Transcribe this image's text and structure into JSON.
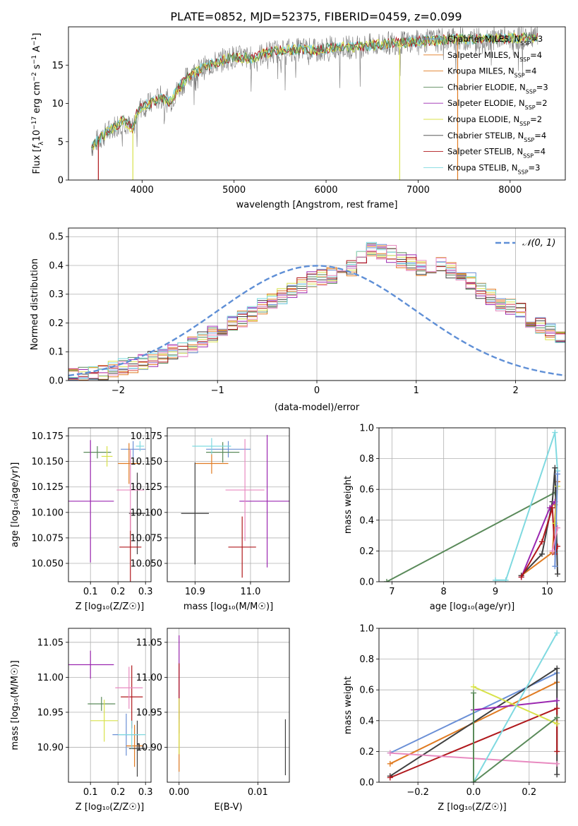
{
  "title": "PLATE=0852, MJD=52375, FIBERID=0459, z=0.099",
  "colors": {
    "Chabrier MILES": "#6a8fd6",
    "Salpeter MILES": "#e07b22",
    "Kroupa MILES": "#e07b22",
    "Chabrier ELODIE": "#5a8a5a",
    "Salpeter ELODIE": "#9b27b0",
    "Kroupa ELODIE": "#d8e24a",
    "Chabrier STELIB": "#404040",
    "Salpeter STELIB": "#b0181c",
    "Kroupa STELIB": "#7fd9e0",
    "pink": "#e88ac0"
  },
  "chart_data": [
    {
      "id": "spectrum",
      "type": "line",
      "xlabel": "wavelength [Angstrom, rest frame]",
      "ylabel": "Flux [f_λ10^-17 erg cm^-2 s^-1 A^-1]",
      "xlim": [
        3200,
        8600
      ],
      "ylim": [
        0,
        20
      ],
      "xticks": [
        4000,
        5000,
        6000,
        7000,
        8000
      ],
      "yticks": [
        0,
        5,
        10,
        15
      ],
      "grid": false,
      "legend_position": "right",
      "legend": [
        {
          "label": "Chabrier MILES, N_SSP=3",
          "name": "Chabrier MILES",
          "nssp": "3"
        },
        {
          "label": "Salpeter MILES, N_SSP=4",
          "name": "Salpeter MILES",
          "nssp": "4"
        },
        {
          "label": "Kroupa MILES, N_SSP=4",
          "name": "Kroupa MILES",
          "nssp": "4"
        },
        {
          "label": "Chabrier ELODIE, N_SSP=3",
          "name": "Chabrier ELODIE",
          "nssp": "3"
        },
        {
          "label": "Salpeter ELODIE, N_SSP=2",
          "name": "Salpeter ELODIE",
          "nssp": "2"
        },
        {
          "label": "Kroupa ELODIE, N_SSP=2",
          "name": "Kroupa ELODIE",
          "nssp": "2"
        },
        {
          "label": "Chabrier STELIB, N_SSP=4",
          "name": "Chabrier STELIB",
          "nssp": "4"
        },
        {
          "label": "Salpeter STELIB, N_SSP=4",
          "name": "Salpeter STELIB",
          "nssp": "4"
        },
        {
          "label": "Kroupa STELIB, N_SSP=3",
          "name": "Kroupa STELIB",
          "nssp": "3"
        }
      ],
      "continuum": [
        [
          3450,
          4.3
        ],
        [
          3500,
          5.0
        ],
        [
          3600,
          6.0
        ],
        [
          3700,
          7.0
        ],
        [
          3800,
          7.8
        ],
        [
          3900,
          6.5
        ],
        [
          3950,
          9.0
        ],
        [
          4000,
          9.6
        ],
        [
          4100,
          10.0
        ],
        [
          4200,
          10.8
        ],
        [
          4300,
          10.2
        ],
        [
          4400,
          12.0
        ],
        [
          4500,
          13.5
        ],
        [
          4600,
          14.2
        ],
        [
          4700,
          14.8
        ],
        [
          4800,
          15.3
        ],
        [
          4900,
          15.8
        ],
        [
          5000,
          16.1
        ],
        [
          5100,
          16.0
        ],
        [
          5200,
          15.9
        ],
        [
          5300,
          16.4
        ],
        [
          5400,
          16.7
        ],
        [
          5500,
          16.9
        ],
        [
          5600,
          17.0
        ],
        [
          5700,
          17.0
        ],
        [
          5800,
          17.1
        ],
        [
          5900,
          16.8
        ],
        [
          6000,
          17.2
        ],
        [
          6100,
          17.4
        ],
        [
          6200,
          17.4
        ],
        [
          6300,
          17.3
        ],
        [
          6400,
          17.5
        ],
        [
          6500,
          17.6
        ],
        [
          6600,
          17.7
        ],
        [
          6700,
          17.9
        ],
        [
          6800,
          17.9
        ],
        [
          6900,
          18.0
        ],
        [
          7000,
          18.1
        ],
        [
          7200,
          18.2
        ],
        [
          7400,
          18.4
        ],
        [
          7600,
          18.4
        ],
        [
          7800,
          18.5
        ],
        [
          8000,
          18.5
        ],
        [
          8200,
          18.6
        ],
        [
          8300,
          18.6
        ]
      ],
      "spikes": [
        {
          "x": 3900,
          "series": "Kroupa ELODIE",
          "y": 0
        },
        {
          "x": 3525,
          "series": "Salpeter STELIB",
          "y": 0
        },
        {
          "x": 6800,
          "series": "Kroupa ELODIE",
          "y": 0
        },
        {
          "x": 7430,
          "series": "Salpeter MILES",
          "y": 0
        }
      ]
    },
    {
      "id": "residual-histogram",
      "type": "histogram",
      "xlabel": "(data-model)/error",
      "ylabel": "Normed distribution",
      "xlim": [
        -2.5,
        2.5
      ],
      "ylim": [
        0,
        0.53
      ],
      "xticks": [
        -2,
        -1,
        0,
        1,
        2
      ],
      "yticks": [
        0.0,
        0.1,
        0.2,
        0.3,
        0.4,
        0.5
      ],
      "grid": true,
      "legend_position": "top-right",
      "legend": [
        {
          "label": "𝒩(0, 1)"
        }
      ],
      "bin_edges_start": -2.5,
      "bin_width": 0.1,
      "base_values": [
        0.02,
        0.022,
        0.028,
        0.032,
        0.04,
        0.048,
        0.055,
        0.065,
        0.075,
        0.088,
        0.1,
        0.112,
        0.125,
        0.14,
        0.16,
        0.175,
        0.195,
        0.215,
        0.235,
        0.255,
        0.275,
        0.295,
        0.315,
        0.335,
        0.35,
        0.36,
        0.365,
        0.375,
        0.39,
        0.42,
        0.46,
        0.45,
        0.44,
        0.42,
        0.41,
        0.39,
        0.39,
        0.4,
        0.38,
        0.36,
        0.345,
        0.31,
        0.29,
        0.27,
        0.255,
        0.24,
        0.21,
        0.19,
        0.17,
        0.15,
        0.13,
        0.115,
        0.1,
        0.09,
        0.075,
        0.065,
        0.055,
        0.045,
        0.04,
        0.035,
        0.03,
        0.028,
        0.03,
        0.035,
        0.025
      ]
    },
    {
      "id": "age-vs-Z",
      "type": "errorbar",
      "xlabel": "Z [log10(Z/Z☉)]",
      "ylabel": "age [log10(age/yr)]",
      "xlim": [
        0.02,
        0.32
      ],
      "ylim": [
        10.032,
        10.183
      ],
      "xticks": [
        0.1,
        0.2,
        0.3
      ],
      "yticks": [
        10.05,
        10.075,
        10.1,
        10.125,
        10.15,
        10.175
      ],
      "grid": true,
      "points": [
        {
          "series": "Chabrier MILES",
          "x": 0.255,
          "y": 10.162,
          "xerr": 0.045,
          "yerr": 0.008
        },
        {
          "series": "Salpeter MILES",
          "x": 0.24,
          "y": 10.148,
          "xerr": 0.04,
          "yerr": 0.02
        },
        {
          "series": "Chabrier ELODIE",
          "x": 0.125,
          "y": 10.159,
          "xerr": 0.05,
          "yerr": 0.006
        },
        {
          "series": "Salpeter ELODIE",
          "x": 0.1,
          "y": 10.111,
          "xerr": 0.085,
          "yerr": 0.06
        },
        {
          "series": "Kroupa ELODIE",
          "x": 0.16,
          "y": 10.155,
          "xerr": 0.02,
          "yerr": 0.01
        },
        {
          "series": "Chabrier STELIB",
          "x": 0.27,
          "y": 10.099,
          "xerr": 0.03,
          "yerr": 0.04
        },
        {
          "series": "Salpeter STELIB",
          "x": 0.245,
          "y": 10.066,
          "xerr": 0.04,
          "yerr": 0.035
        },
        {
          "series": "Kroupa STELIB",
          "x": 0.28,
          "y": 10.165,
          "xerr": 0.015,
          "yerr": 0.005
        },
        {
          "series": "pink",
          "x": 0.245,
          "y": 10.122,
          "xerr": 0.05,
          "yerr": 0.04
        }
      ]
    },
    {
      "id": "age-vs-mass",
      "type": "errorbar",
      "xlabel": "mass [log10(M/M☉)]",
      "ylabel": "",
      "xlim": [
        10.85,
        11.07
      ],
      "ylim": [
        10.032,
        10.183
      ],
      "xticks": [
        10.9,
        11.0
      ],
      "yticks": [
        10.05,
        10.075,
        10.1,
        10.125,
        10.15,
        10.175
      ],
      "grid": true,
      "points": [
        {
          "series": "Chabrier MILES",
          "x": 10.96,
          "y": 10.162,
          "xerr": 0.04,
          "yerr": 0.008
        },
        {
          "series": "Salpeter MILES",
          "x": 10.93,
          "y": 10.148,
          "xerr": 0.03,
          "yerr": 0.01
        },
        {
          "series": "Chabrier ELODIE",
          "x": 10.95,
          "y": 10.159,
          "xerr": 0.03,
          "yerr": 0.01
        },
        {
          "series": "Salpeter ELODIE",
          "x": 11.03,
          "y": 10.111,
          "xerr": 0.05,
          "yerr": 0.065
        },
        {
          "series": "Chabrier STELIB",
          "x": 10.9,
          "y": 10.099,
          "xerr": 0.025,
          "yerr": 0.05
        },
        {
          "series": "Salpeter STELIB",
          "x": 10.985,
          "y": 10.066,
          "xerr": 0.025,
          "yerr": 0.03
        },
        {
          "series": "Kroupa STELIB",
          "x": 10.93,
          "y": 10.165,
          "xerr": 0.035,
          "yerr": 0.008
        },
        {
          "series": "pink",
          "x": 10.99,
          "y": 10.122,
          "xerr": 0.035,
          "yerr": 0.05
        }
      ]
    },
    {
      "id": "mass-weight-vs-age",
      "type": "line",
      "xlabel": "age [log10(age/yr)]",
      "ylabel": "mass weight",
      "xlim": [
        6.75,
        10.35
      ],
      "ylim": [
        0,
        1.0
      ],
      "xticks": [
        7,
        8,
        9,
        10
      ],
      "yticks": [
        0.0,
        0.2,
        0.4,
        0.6,
        0.8,
        1.0
      ],
      "grid": true,
      "series": [
        {
          "name": "Chabrier ELODIE",
          "x": [
            6.9,
            10.15
          ],
          "y": [
            0.0,
            0.58
          ]
        },
        {
          "name": "Kroupa STELIB",
          "x": [
            9.0,
            9.2,
            10.15,
            10.2
          ],
          "y": [
            0.01,
            0.01,
            0.97,
            0.72
          ]
        },
        {
          "name": "Salpeter MILES",
          "x": [
            9.5,
            10.1,
            10.2,
            10.15
          ],
          "y": [
            0.04,
            0.19,
            0.65,
            0.5
          ]
        },
        {
          "name": "Chabrier STELIB",
          "x": [
            9.5,
            9.9,
            10.1,
            10.15,
            10.2
          ],
          "y": [
            0.04,
            0.18,
            0.52,
            0.74,
            0.05
          ]
        },
        {
          "name": "Salpeter ELODIE",
          "x": [
            9.5,
            10.05,
            10.15
          ],
          "y": [
            0.03,
            0.48,
            0.52
          ]
        },
        {
          "name": "Salpeter STELIB",
          "x": [
            9.5,
            9.9,
            10.1,
            10.15,
            10.2
          ],
          "y": [
            0.03,
            0.26,
            0.48,
            0.18,
            0.23
          ]
        },
        {
          "name": "Kroupa ELODIE",
          "x": [
            10.15,
            10.2
          ],
          "y": [
            0.38,
            0.62
          ]
        },
        {
          "name": "Chabrier MILES",
          "x": [
            10.15,
            10.2
          ],
          "y": [
            0.1,
            0.7
          ]
        },
        {
          "name": "pink",
          "x": [
            10.1,
            10.2
          ],
          "y": [
            0.2,
            0.35
          ]
        }
      ]
    },
    {
      "id": "mass-vs-Z",
      "type": "errorbar",
      "xlabel": "Z [log10(Z/Z☉)]",
      "ylabel": "mass [log10(M/M☉)]",
      "xlim": [
        0.02,
        0.32
      ],
      "ylim": [
        10.85,
        11.07
      ],
      "xticks": [
        0.1,
        0.2,
        0.3
      ],
      "yticks": [
        10.9,
        10.95,
        11.0,
        11.05
      ],
      "grid": true,
      "points": [
        {
          "series": "Chabrier MILES",
          "x": 0.23,
          "y": 10.918,
          "xerr": 0.05,
          "yerr": 0.03
        },
        {
          "series": "Salpeter MILES",
          "x": 0.26,
          "y": 10.902,
          "xerr": 0.03,
          "yerr": 0.03
        },
        {
          "series": "Chabrier ELODIE",
          "x": 0.14,
          "y": 10.962,
          "xerr": 0.05,
          "yerr": 0.01
        },
        {
          "series": "Salpeter ELODIE",
          "x": 0.1,
          "y": 11.018,
          "xerr": 0.085,
          "yerr": 0.02
        },
        {
          "series": "Kroupa ELODIE",
          "x": 0.15,
          "y": 10.938,
          "xerr": 0.05,
          "yerr": 0.03
        },
        {
          "series": "Chabrier STELIB",
          "x": 0.27,
          "y": 10.898,
          "xerr": 0.03,
          "yerr": 0.04
        },
        {
          "series": "Salpeter STELIB",
          "x": 0.25,
          "y": 10.972,
          "xerr": 0.04,
          "yerr": 0.045
        },
        {
          "series": "Kroupa STELIB",
          "x": 0.25,
          "y": 10.918,
          "xerr": 0.05,
          "yerr": 0.02
        },
        {
          "series": "pink",
          "x": 0.24,
          "y": 10.985,
          "xerr": 0.05,
          "yerr": 0.03
        }
      ]
    },
    {
      "id": "mass-vs-ebv",
      "type": "errorbar",
      "xlabel": "E(B-V)",
      "ylabel": "",
      "xlim": [
        -0.0015,
        0.014
      ],
      "ylim": [
        10.85,
        11.07
      ],
      "xticks": [
        0.0,
        0.01
      ],
      "yticks": [
        10.9,
        10.95,
        11.0,
        11.05
      ],
      "grid": true,
      "points": [
        {
          "series": "Salpeter ELODIE",
          "x": 0.0,
          "y": 11.0,
          "xerr": 0.0,
          "yerr": 0.06
        },
        {
          "series": "Salpeter STELIB",
          "x": 0.0,
          "y": 10.97,
          "xerr": 0.0,
          "yerr": 0.05
        },
        {
          "series": "Salpeter MILES",
          "x": 0.0,
          "y": 10.9,
          "xerr": 0.0,
          "yerr": 0.035
        },
        {
          "series": "Kroupa ELODIE",
          "x": 0.0,
          "y": 10.93,
          "xerr": 0.0,
          "yerr": 0.04
        },
        {
          "series": "Chabrier STELIB",
          "x": 0.0135,
          "y": 10.9,
          "xerr": 0.0,
          "yerr": 0.04
        }
      ]
    },
    {
      "id": "mass-weight-vs-Z",
      "type": "line",
      "xlabel": "Z [log10(Z/Z☉)]",
      "ylabel": "mass weight",
      "xlim": [
        -0.34,
        0.33
      ],
      "ylim": [
        0,
        1.0
      ],
      "xticks": [
        -0.2,
        0.0,
        0.2
      ],
      "yticks": [
        0.0,
        0.2,
        0.4,
        0.6,
        0.8,
        1.0
      ],
      "grid": true,
      "series": [
        {
          "name": "Chabrier MILES",
          "x": [
            -0.3,
            0.3
          ],
          "y": [
            0.19,
            0.71
          ]
        },
        {
          "name": "Salpeter MILES",
          "x": [
            -0.3,
            0.3
          ],
          "y": [
            0.12,
            0.65
          ]
        },
        {
          "name": "Chabrier STELIB",
          "x": [
            -0.3,
            0.3,
            0.3
          ],
          "y": [
            0.04,
            0.74,
            0.05
          ]
        },
        {
          "name": "Salpeter STELIB",
          "x": [
            -0.3,
            0.3,
            0.3
          ],
          "y": [
            0.03,
            0.48,
            0.2
          ]
        },
        {
          "name": "pink",
          "x": [
            -0.3,
            0.3
          ],
          "y": [
            0.19,
            0.12
          ]
        },
        {
          "name": "Salpeter ELODIE",
          "x": [
            0.0,
            0.3
          ],
          "y": [
            0.47,
            0.53
          ]
        },
        {
          "name": "Kroupa ELODIE",
          "x": [
            0.0,
            0.3
          ],
          "y": [
            0.62,
            0.38
          ]
        },
        {
          "name": "Kroupa STELIB",
          "x": [
            0.0,
            0.3
          ],
          "y": [
            0.0,
            0.97
          ]
        },
        {
          "name": "Chabrier ELODIE",
          "x": [
            0.0,
            0.0,
            0.3
          ],
          "y": [
            0.58,
            0.0,
            0.42
          ]
        }
      ]
    }
  ]
}
